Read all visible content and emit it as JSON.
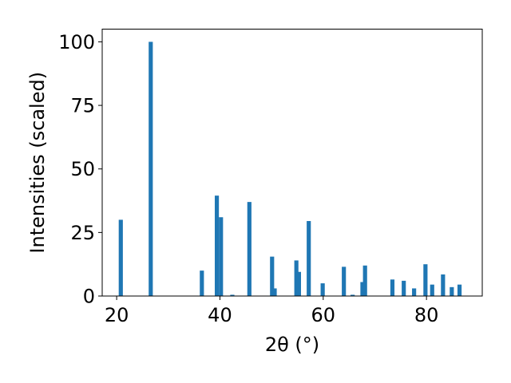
{
  "chart_data": {
    "type": "bar",
    "xlabel": "2θ (°)",
    "ylabel": "Intensities (scaled)",
    "xlim": [
      17.2,
      90.8
    ],
    "ylim": [
      0,
      105
    ],
    "xticks": [
      20,
      40,
      60,
      80
    ],
    "yticks": [
      0,
      25,
      50,
      75,
      100
    ],
    "bar_color": "#1f77b4",
    "bar_width": 0.8,
    "x": [
      20.8,
      26.6,
      36.5,
      39.4,
      40.2,
      42.4,
      45.7,
      50.1,
      50.6,
      54.8,
      55.3,
      57.2,
      59.9,
      64.0,
      65.7,
      67.6,
      68.1,
      73.4,
      75.6,
      77.6,
      79.8,
      81.1,
      83.2,
      84.9,
      86.4
    ],
    "y": [
      30,
      100,
      10,
      39.5,
      31,
      0.5,
      37,
      15.5,
      3,
      14,
      9.5,
      29.5,
      5,
      11.5,
      0.5,
      5.5,
      12,
      6.5,
      6,
      3,
      12.5,
      4.5,
      8.5,
      3.5,
      4.5
    ],
    "grid": false,
    "legend": "none"
  }
}
